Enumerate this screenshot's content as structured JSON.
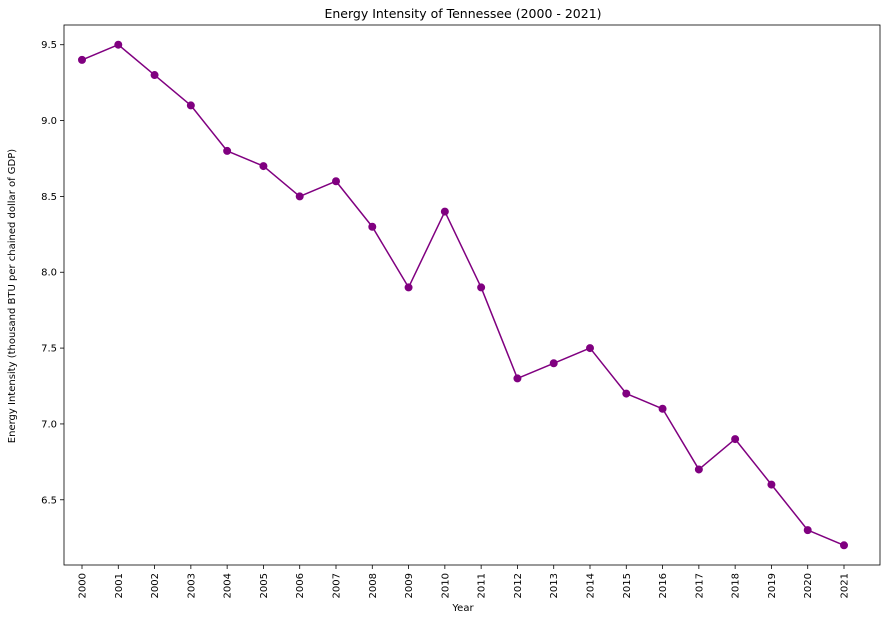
{
  "chart_data": {
    "type": "line",
    "title": "Energy Intensity of Tennessee (2000 - 2021)",
    "xlabel": "Year",
    "ylabel": "Energy Intensity (thousand BTU per chained dollar of GDP)",
    "x": [
      "2000",
      "2001",
      "2002",
      "2003",
      "2004",
      "2005",
      "2006",
      "2007",
      "2008",
      "2009",
      "2010",
      "2011",
      "2012",
      "2013",
      "2014",
      "2015",
      "2016",
      "2017",
      "2018",
      "2019",
      "2020",
      "2021"
    ],
    "series": [
      {
        "values": [
          9.4,
          9.5,
          9.3,
          9.1,
          8.8,
          8.7,
          8.5,
          8.6,
          8.3,
          7.9,
          8.4,
          7.9,
          7.3,
          7.4,
          7.5,
          7.2,
          7.1,
          6.7,
          6.9,
          6.6,
          6.3,
          6.2
        ],
        "color": "#800080",
        "marker": "circle"
      }
    ],
    "yticks": [
      "6.5",
      "7.0",
      "7.5",
      "8.0",
      "8.5",
      "9.0",
      "9.5"
    ],
    "ylim": [
      6.07,
      9.63
    ],
    "grid": false,
    "legend": "none"
  }
}
